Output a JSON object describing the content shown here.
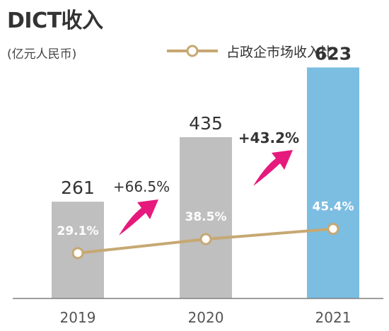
{
  "page": {
    "title": "DICT收入",
    "unit": "(亿元人民币)"
  },
  "legend": {
    "line_label": "占政企市场收入比"
  },
  "colors": {
    "bar_default": "#bfbfbf",
    "bar_highlight": "#7cbde2",
    "line": "#c6a872",
    "arrow": "#e6197c",
    "text": "#333333",
    "axis": "#7f7f7f"
  },
  "icons": [
    "growth-arrow-icon"
  ],
  "chart_data": {
    "type": "bar",
    "categories": [
      "2019",
      "2020",
      "2021"
    ],
    "values": [
      261,
      435,
      623
    ],
    "value_labels": [
      "261",
      "435",
      "623"
    ],
    "highlight_index": 2,
    "ylim": [
      0,
      700
    ],
    "line_series": {
      "name": "占政企市场收入比",
      "values": [
        29.1,
        38.5,
        45.4
      ],
      "labels": [
        "29.1%",
        "38.5%",
        "45.4%"
      ],
      "ylim": [
        0,
        100
      ]
    },
    "growth_annotations": [
      {
        "label": "+66.5%",
        "between": [
          "2019",
          "2020"
        ],
        "bold": false
      },
      {
        "label": "+43.2%",
        "between": [
          "2020",
          "2021"
        ],
        "bold": true
      }
    ]
  }
}
